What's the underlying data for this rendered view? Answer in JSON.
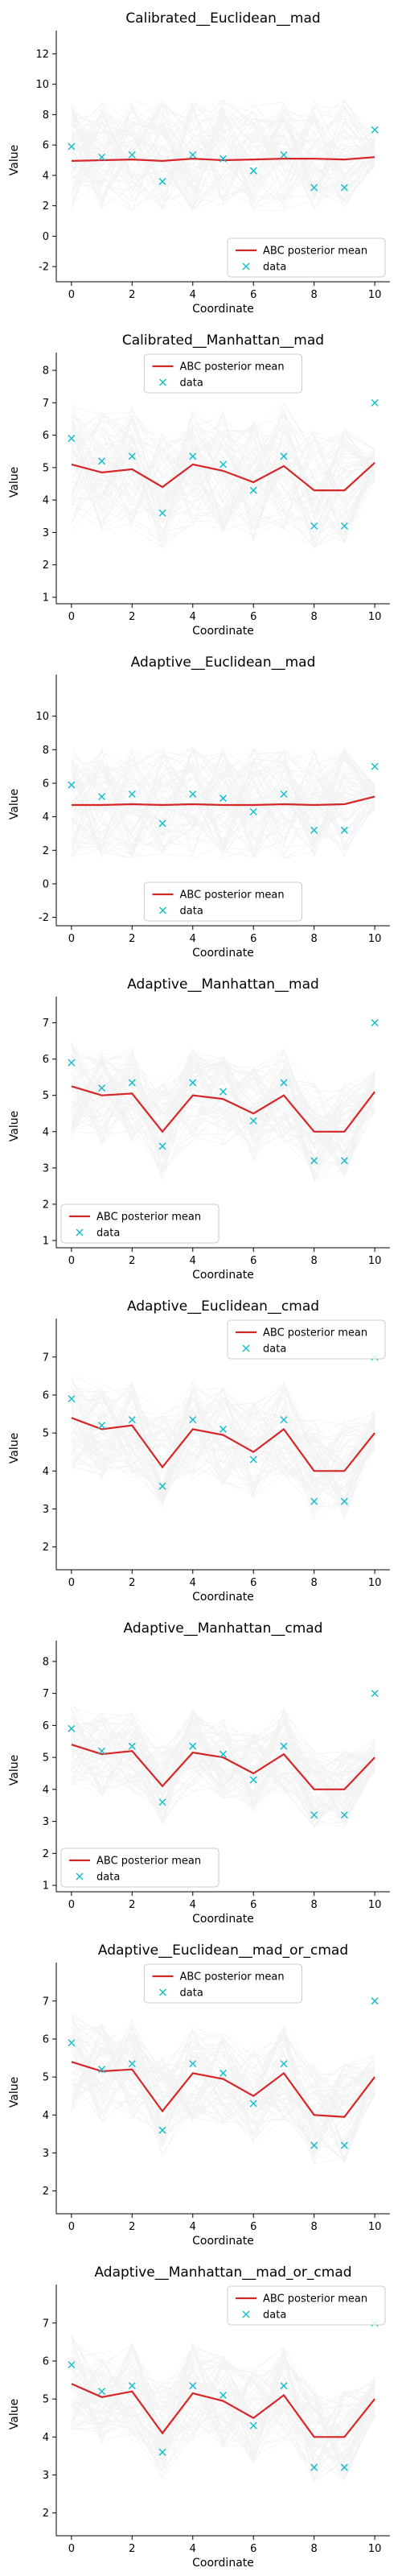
{
  "chart_data": [
    {
      "type": "line",
      "title": "Calibrated__Euclidean__mad",
      "xlabel": "Coordinate",
      "ylabel": "Value",
      "xlim": [
        0,
        10
      ],
      "ylim": [
        -3,
        13
      ],
      "xticks": [
        0,
        2,
        4,
        6,
        8,
        10
      ],
      "yticks": [
        -2,
        0,
        2,
        4,
        6,
        8,
        10,
        12
      ],
      "legend": "lower-right",
      "grid": false,
      "series": [
        {
          "name": "ABC posterior mean",
          "kind": "line",
          "color": "#d62728",
          "x": [
            0,
            1,
            2,
            3,
            4,
            5,
            6,
            7,
            8,
            9,
            10
          ],
          "y": [
            4.95,
            5.0,
            5.05,
            4.95,
            5.1,
            5.0,
            5.05,
            5.1,
            5.1,
            5.05,
            5.2
          ]
        },
        {
          "name": "data",
          "kind": "scatter",
          "color": "#17becf",
          "x": [
            0,
            1,
            2,
            3,
            4,
            5,
            6,
            7,
            8,
            9,
            10
          ],
          "y": [
            5.9,
            5.2,
            5.35,
            3.6,
            5.35,
            5.1,
            4.3,
            5.35,
            3.2,
            3.2,
            7.0
          ]
        }
      ],
      "band": {
        "color": "#bfbfbf",
        "lower": [
          1.5,
          1.7,
          1.6,
          1.7,
          1.6,
          1.7,
          1.6,
          1.7,
          1.7,
          1.8,
          4.5
        ],
        "upper": [
          9,
          9,
          9,
          9,
          9,
          9,
          9,
          9,
          9,
          9,
          6.5
        ]
      }
    },
    {
      "type": "line",
      "title": "Calibrated__Manhattan__mad",
      "xlabel": "Coordinate",
      "ylabel": "Value",
      "xlim": [
        0,
        10
      ],
      "ylim": [
        0.8,
        8.3
      ],
      "xticks": [
        0,
        2,
        4,
        6,
        8,
        10
      ],
      "yticks": [
        1,
        2,
        3,
        4,
        5,
        6,
        7,
        8
      ],
      "legend": "top-center",
      "grid": false,
      "series": [
        {
          "name": "ABC posterior mean",
          "kind": "line",
          "color": "#d62728",
          "x": [
            0,
            1,
            2,
            3,
            4,
            5,
            6,
            7,
            8,
            9,
            10
          ],
          "y": [
            5.1,
            4.85,
            4.95,
            4.4,
            5.1,
            4.9,
            4.55,
            5.05,
            4.3,
            4.3,
            5.15
          ]
        },
        {
          "name": "data",
          "kind": "scatter",
          "color": "#17becf",
          "x": [
            0,
            1,
            2,
            3,
            4,
            5,
            6,
            7,
            8,
            9,
            10
          ],
          "y": [
            5.9,
            5.2,
            5.35,
            3.6,
            5.35,
            5.1,
            4.3,
            5.35,
            3.2,
            3.2,
            7.0
          ]
        }
      ],
      "band": {
        "color": "#bfbfbf",
        "lower": [
          3.0,
          3.0,
          3.1,
          2.5,
          3.1,
          3.0,
          2.7,
          3.1,
          2.5,
          2.6,
          4.6
        ],
        "upper": [
          7.0,
          6.8,
          6.9,
          6.3,
          7.0,
          6.8,
          6.5,
          7.0,
          6.2,
          6.2,
          5.6
        ]
      }
    },
    {
      "type": "line",
      "title": "Adaptive__Euclidean__mad",
      "xlabel": "Coordinate",
      "ylabel": "Value",
      "xlim": [
        0,
        10
      ],
      "ylim": [
        -2.5,
        12
      ],
      "xticks": [
        0,
        2,
        4,
        6,
        8,
        10
      ],
      "yticks": [
        -2,
        0,
        2,
        4,
        6,
        8,
        10
      ],
      "legend": "lower-center",
      "grid": false,
      "series": [
        {
          "name": "ABC posterior mean",
          "kind": "line",
          "color": "#d62728",
          "x": [
            0,
            1,
            2,
            3,
            4,
            5,
            6,
            7,
            8,
            9,
            10
          ],
          "y": [
            4.7,
            4.7,
            4.75,
            4.7,
            4.75,
            4.7,
            4.7,
            4.75,
            4.7,
            4.75,
            5.2
          ]
        },
        {
          "name": "data",
          "kind": "scatter",
          "color": "#17becf",
          "x": [
            0,
            1,
            2,
            3,
            4,
            5,
            6,
            7,
            8,
            9,
            10
          ],
          "y": [
            5.9,
            5.2,
            5.35,
            3.6,
            5.35,
            5.1,
            4.3,
            5.35,
            3.2,
            3.2,
            7.0
          ]
        }
      ],
      "band": {
        "color": "#bfbfbf",
        "lower": [
          1.5,
          1.5,
          1.5,
          1.5,
          1.5,
          1.5,
          1.5,
          1.5,
          1.5,
          1.5,
          4.4
        ],
        "upper": [
          8.2,
          8.2,
          8.2,
          8.2,
          8.2,
          8.2,
          8.2,
          8.2,
          8.2,
          8.2,
          6.0
        ]
      }
    },
    {
      "type": "line",
      "title": "Adaptive__Manhattan__mad",
      "xlabel": "Coordinate",
      "ylabel": "Value",
      "xlim": [
        0,
        10
      ],
      "ylim": [
        0.8,
        7.5
      ],
      "xticks": [
        0,
        2,
        4,
        6,
        8,
        10
      ],
      "yticks": [
        1,
        2,
        3,
        4,
        5,
        6,
        7
      ],
      "legend": "lower-left",
      "grid": false,
      "series": [
        {
          "name": "ABC posterior mean",
          "kind": "line",
          "color": "#d62728",
          "x": [
            0,
            1,
            2,
            3,
            4,
            5,
            6,
            7,
            8,
            9,
            10
          ],
          "y": [
            5.25,
            5.0,
            5.05,
            4.0,
            5.0,
            4.9,
            4.5,
            5.0,
            4.0,
            4.0,
            5.1
          ]
        },
        {
          "name": "data",
          "kind": "scatter",
          "color": "#17becf",
          "x": [
            0,
            1,
            2,
            3,
            4,
            5,
            6,
            7,
            8,
            9,
            10
          ],
          "y": [
            5.9,
            5.2,
            5.35,
            3.6,
            5.35,
            5.1,
            4.3,
            5.35,
            3.2,
            3.2,
            7.0
          ]
        }
      ],
      "band": {
        "color": "#bfbfbf",
        "lower": [
          3.8,
          3.6,
          3.7,
          2.6,
          3.7,
          3.6,
          3.2,
          3.7,
          2.6,
          2.7,
          4.5
        ],
        "upper": [
          6.5,
          6.2,
          6.3,
          5.4,
          6.3,
          6.1,
          5.8,
          6.3,
          5.4,
          5.4,
          5.7
        ]
      }
    },
    {
      "type": "line",
      "title": "Adaptive__Euclidean__cmad",
      "xlabel": "Coordinate",
      "ylabel": "Value",
      "xlim": [
        0,
        10
      ],
      "ylim": [
        1.4,
        7.8
      ],
      "xticks": [
        0,
        2,
        4,
        6,
        8,
        10
      ],
      "yticks": [
        2,
        3,
        4,
        5,
        6,
        7
      ],
      "legend": "top-right",
      "grid": false,
      "series": [
        {
          "name": "ABC posterior mean",
          "kind": "line",
          "color": "#d62728",
          "x": [
            0,
            1,
            2,
            3,
            4,
            5,
            6,
            7,
            8,
            9,
            10
          ],
          "y": [
            5.4,
            5.1,
            5.2,
            4.1,
            5.1,
            4.95,
            4.5,
            5.1,
            4.0,
            4.0,
            5.0
          ]
        },
        {
          "name": "data",
          "kind": "scatter",
          "color": "#17becf",
          "x": [
            0,
            1,
            2,
            3,
            4,
            5,
            6,
            7,
            8,
            9,
            10
          ],
          "y": [
            5.9,
            5.2,
            5.35,
            3.6,
            5.35,
            5.1,
            4.3,
            5.35,
            3.2,
            3.2,
            7.0
          ]
        }
      ],
      "band": {
        "color": "#bfbfbf",
        "lower": [
          4.0,
          3.7,
          3.8,
          2.8,
          3.8,
          3.6,
          3.2,
          3.8,
          2.7,
          2.7,
          4.5
        ],
        "upper": [
          6.6,
          6.3,
          6.4,
          5.5,
          6.4,
          6.2,
          5.8,
          6.4,
          5.4,
          5.4,
          5.6
        ]
      }
    },
    {
      "type": "line",
      "title": "Adaptive__Manhattan__cmad",
      "xlabel": "Coordinate",
      "ylabel": "Value",
      "xlim": [
        0,
        10
      ],
      "ylim": [
        0.8,
        8.4
      ],
      "xticks": [
        0,
        2,
        4,
        6,
        8,
        10
      ],
      "yticks": [
        1,
        2,
        3,
        4,
        5,
        6,
        7,
        8
      ],
      "legend": "lower-left",
      "grid": false,
      "series": [
        {
          "name": "ABC posterior mean",
          "kind": "line",
          "color": "#d62728",
          "x": [
            0,
            1,
            2,
            3,
            4,
            5,
            6,
            7,
            8,
            9,
            10
          ],
          "y": [
            5.4,
            5.1,
            5.2,
            4.1,
            5.15,
            5.0,
            4.5,
            5.1,
            4.0,
            4.0,
            5.0
          ]
        },
        {
          "name": "data",
          "kind": "scatter",
          "color": "#17becf",
          "x": [
            0,
            1,
            2,
            3,
            4,
            5,
            6,
            7,
            8,
            9,
            10
          ],
          "y": [
            5.9,
            5.2,
            5.35,
            3.6,
            5.35,
            5.1,
            4.3,
            5.35,
            3.2,
            3.2,
            7.0
          ]
        }
      ],
      "band": {
        "color": "#bfbfbf",
        "lower": [
          4.1,
          3.8,
          3.9,
          2.9,
          3.9,
          3.7,
          3.3,
          3.9,
          2.8,
          2.8,
          4.5
        ],
        "upper": [
          6.7,
          6.4,
          6.5,
          5.4,
          6.5,
          6.3,
          5.8,
          6.5,
          5.3,
          5.3,
          5.6
        ]
      }
    },
    {
      "type": "line",
      "title": "Adaptive__Euclidean__mad_or_cmad",
      "xlabel": "Coordinate",
      "ylabel": "Value",
      "xlim": [
        0,
        10
      ],
      "ylim": [
        1.4,
        7.8
      ],
      "xticks": [
        0,
        2,
        4,
        6,
        8,
        10
      ],
      "yticks": [
        2,
        3,
        4,
        5,
        6,
        7
      ],
      "legend": "top-center",
      "grid": false,
      "series": [
        {
          "name": "ABC posterior mean",
          "kind": "line",
          "color": "#d62728",
          "x": [
            0,
            1,
            2,
            3,
            4,
            5,
            6,
            7,
            8,
            9,
            10
          ],
          "y": [
            5.4,
            5.15,
            5.2,
            4.1,
            5.1,
            4.95,
            4.5,
            5.1,
            4.0,
            3.95,
            5.0
          ]
        },
        {
          "name": "data",
          "kind": "scatter",
          "color": "#17becf",
          "x": [
            0,
            1,
            2,
            3,
            4,
            5,
            6,
            7,
            8,
            9,
            10
          ],
          "y": [
            5.9,
            5.2,
            5.35,
            3.6,
            5.35,
            5.1,
            4.3,
            5.35,
            3.2,
            3.2,
            7.0
          ]
        }
      ],
      "band": {
        "color": "#bfbfbf",
        "lower": [
          4.1,
          3.8,
          3.9,
          2.9,
          3.8,
          3.7,
          3.2,
          3.8,
          2.7,
          2.7,
          4.5
        ],
        "upper": [
          6.7,
          6.4,
          6.5,
          5.5,
          6.4,
          6.2,
          5.8,
          6.4,
          5.4,
          5.4,
          5.6
        ]
      }
    },
    {
      "type": "line",
      "title": "Adaptive__Manhattan__mad_or_cmad",
      "xlabel": "Coordinate",
      "ylabel": "Value",
      "xlim": [
        0,
        10
      ],
      "ylim": [
        1.4,
        7.8
      ],
      "xticks": [
        0,
        2,
        4,
        6,
        8,
        10
      ],
      "yticks": [
        2,
        3,
        4,
        5,
        6,
        7
      ],
      "legend": "top-right",
      "grid": false,
      "series": [
        {
          "name": "ABC posterior mean",
          "kind": "line",
          "color": "#d62728",
          "x": [
            0,
            1,
            2,
            3,
            4,
            5,
            6,
            7,
            8,
            9,
            10
          ],
          "y": [
            5.4,
            5.05,
            5.2,
            4.1,
            5.15,
            4.95,
            4.5,
            5.1,
            4.0,
            4.0,
            5.0
          ]
        },
        {
          "name": "data",
          "kind": "scatter",
          "color": "#17becf",
          "x": [
            0,
            1,
            2,
            3,
            4,
            5,
            6,
            7,
            8,
            9,
            10
          ],
          "y": [
            5.9,
            5.2,
            5.35,
            3.6,
            5.35,
            5.1,
            4.3,
            5.35,
            3.2,
            3.2,
            7.0
          ]
        }
      ],
      "band": {
        "color": "#bfbfbf",
        "lower": [
          4.1,
          3.8,
          3.9,
          2.9,
          3.9,
          3.7,
          3.3,
          3.9,
          2.8,
          2.8,
          4.5
        ],
        "upper": [
          6.7,
          6.3,
          6.5,
          5.5,
          6.5,
          6.2,
          5.8,
          6.4,
          5.3,
          5.3,
          5.6
        ]
      }
    }
  ]
}
